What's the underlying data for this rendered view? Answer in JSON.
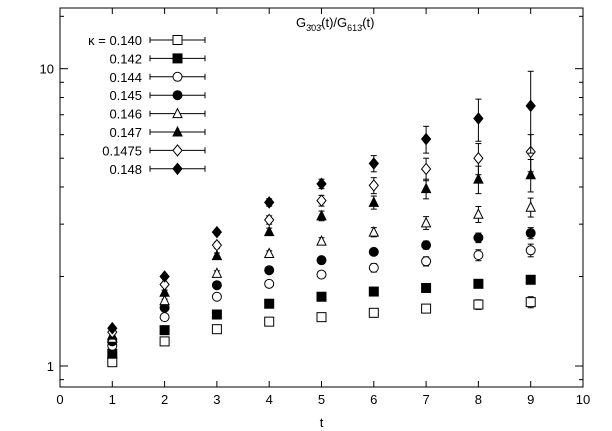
{
  "chart_data": {
    "type": "scatter",
    "title_html": "G<tspan font-size='9' dy='4'>3̄03̄</tspan><tspan dy='-4'>(t)/G</tspan><tspan font-size='9' dy='4'>613̄</tspan><tspan dy='-4'>(t)</tspan>",
    "title_plain": "G303(t)/G613(t)",
    "xlabel": "t",
    "ylabel": "",
    "x_scale": "linear",
    "y_scale": "log",
    "xlim": [
      0,
      10
    ],
    "ylim": [
      0.85,
      16
    ],
    "x_ticks": [
      "0",
      "1",
      "2",
      "3",
      "4",
      "5",
      "6",
      "7",
      "8",
      "9",
      "10"
    ],
    "y_ticks": [
      {
        "value": 1,
        "label": "1"
      },
      {
        "value": 10,
        "label": "10"
      }
    ],
    "grid": false,
    "legend_position": "top-left",
    "legend_prefix": "κ = ",
    "series": [
      {
        "name": "0.140",
        "marker": "square-open",
        "x": [
          1,
          2,
          3,
          4,
          5,
          6,
          7,
          8,
          9
        ],
        "y": [
          1.03,
          1.21,
          1.33,
          1.41,
          1.46,
          1.51,
          1.56,
          1.61,
          1.64
        ],
        "err": [
          0.01,
          0.01,
          0.02,
          0.03,
          0.04,
          0.05,
          0.05,
          0.06,
          0.07
        ]
      },
      {
        "name": "0.142",
        "marker": "square-filled",
        "x": [
          1,
          2,
          3,
          4,
          5,
          6,
          7,
          8,
          9
        ],
        "y": [
          1.1,
          1.32,
          1.49,
          1.62,
          1.71,
          1.78,
          1.83,
          1.89,
          1.95
        ],
        "err": [
          0.01,
          0.01,
          0.02,
          0.02,
          0.03,
          0.03,
          0.04,
          0.05,
          0.05
        ]
      },
      {
        "name": "0.144",
        "marker": "circle-open",
        "x": [
          1,
          2,
          3,
          4,
          5,
          6,
          7,
          8,
          9
        ],
        "y": [
          1.17,
          1.46,
          1.71,
          1.89,
          2.03,
          2.14,
          2.25,
          2.36,
          2.45
        ],
        "err": [
          0.01,
          0.02,
          0.03,
          0.04,
          0.05,
          0.07,
          0.08,
          0.1,
          0.12
        ]
      },
      {
        "name": "0.145",
        "marker": "circle-filled",
        "x": [
          1,
          2,
          3,
          4,
          5,
          6,
          7,
          8,
          9
        ],
        "y": [
          1.21,
          1.57,
          1.87,
          2.1,
          2.27,
          2.42,
          2.55,
          2.7,
          2.8
        ],
        "err": [
          0.01,
          0.02,
          0.03,
          0.04,
          0.05,
          0.06,
          0.08,
          0.1,
          0.12
        ]
      },
      {
        "name": "0.146",
        "marker": "triangle-open",
        "x": [
          1,
          2,
          3,
          4,
          5,
          6,
          7,
          8,
          9
        ],
        "y": [
          1.24,
          1.66,
          2.05,
          2.39,
          2.63,
          2.82,
          3.03,
          3.24,
          3.42
        ],
        "err": [
          0.01,
          0.02,
          0.04,
          0.05,
          0.07,
          0.1,
          0.15,
          0.2,
          0.25
        ]
      },
      {
        "name": "0.147",
        "marker": "triangle-filled",
        "x": [
          1,
          2,
          3,
          4,
          5,
          6,
          7,
          8,
          9
        ],
        "y": [
          1.27,
          1.77,
          2.35,
          2.83,
          3.2,
          3.55,
          3.95,
          4.25,
          4.4
        ],
        "err": [
          0.01,
          0.03,
          0.05,
          0.08,
          0.12,
          0.18,
          0.3,
          0.45,
          0.55
        ]
      },
      {
        "name": "0.1475",
        "marker": "diamond-open",
        "x": [
          1,
          2,
          3,
          4,
          5,
          6,
          7,
          8,
          9
        ],
        "y": [
          1.3,
          1.88,
          2.55,
          3.1,
          3.6,
          4.05,
          4.6,
          5.0,
          5.25
        ],
        "err": [
          0.01,
          0.03,
          0.06,
          0.1,
          0.15,
          0.25,
          0.4,
          0.6,
          0.75
        ]
      },
      {
        "name": "0.148",
        "marker": "diamond-filled",
        "x": [
          1,
          2,
          3,
          4,
          5,
          6,
          7,
          8,
          9
        ],
        "y": [
          1.34,
          2.0,
          2.82,
          3.55,
          4.1,
          4.8,
          5.8,
          6.8,
          7.5
        ],
        "err": [
          0.01,
          0.03,
          0.06,
          0.1,
          0.15,
          0.3,
          0.6,
          1.1,
          2.3
        ]
      }
    ]
  }
}
